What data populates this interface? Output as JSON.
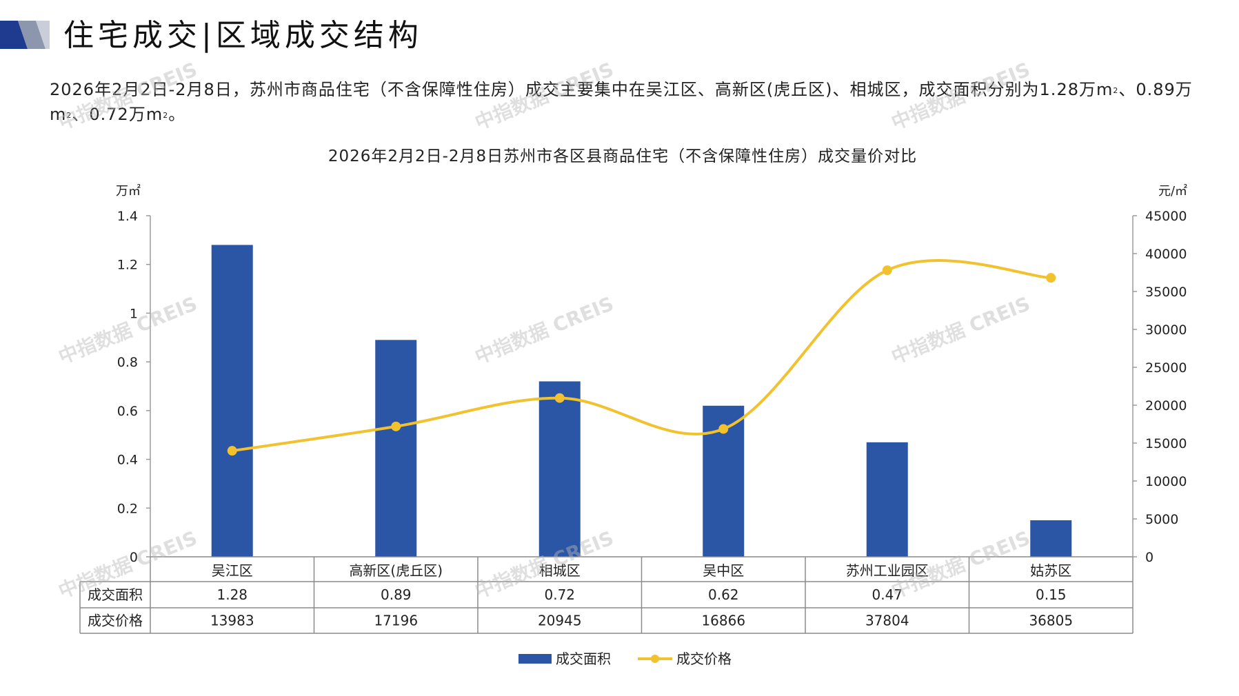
{
  "header": {
    "title": "住宅成交|区域成交结构",
    "brand_colors": {
      "dark": "#1f3b8f",
      "mid": "#8c96ad",
      "light": "#c9ced9"
    }
  },
  "summary": {
    "text1": "2026年2月2日-2月8日，苏州市商品住宅（不含保障性住房）成交主要集中在吴江区、高新区(虎丘区)、相城区，成交面积分别为1.28万",
    "text2": "m",
    "text3": "、0.89万m",
    "text4": "、0.72万m",
    "text5": "。",
    "sup": "2"
  },
  "watermark": {
    "text": "中指数据 CREIS"
  },
  "chart_data": {
    "type": "bar+line",
    "title": "2026年2月2日-2月8日苏州市各区县商品住宅（不含保障性住房）成交量价对比",
    "ylabel_left": "万㎡",
    "ylabel_right": "元/㎡",
    "categories": [
      "吴江区",
      "高新区(虎丘区)",
      "相城区",
      "吴中区",
      "苏州工业园区",
      "姑苏区"
    ],
    "series": [
      {
        "name": "成交面积",
        "type": "bar",
        "axis": "left",
        "color": "#2b55a5",
        "values": [
          1.28,
          0.89,
          0.72,
          0.62,
          0.47,
          0.15
        ],
        "labels": [
          "1.28",
          "0.89",
          "0.72",
          "0.62",
          "0.47",
          "0.15"
        ]
      },
      {
        "name": "成交价格",
        "type": "line",
        "axis": "right",
        "color": "#f2c12e",
        "smooth": true,
        "values": [
          13983,
          17196,
          20945,
          16866,
          37804,
          36805
        ],
        "labels": [
          "13983",
          "17196",
          "20945",
          "16866",
          "37804",
          "36805"
        ]
      }
    ],
    "ylim_left": [
      0,
      1.4
    ],
    "yticks_left": [
      "0",
      "0.2",
      "0.4",
      "0.6",
      "0.8",
      "1",
      "1.2",
      "1.4"
    ],
    "ylim_right": [
      0,
      45000
    ],
    "yticks_right": [
      "0",
      "5000",
      "10000",
      "15000",
      "20000",
      "25000",
      "30000",
      "35000",
      "40000",
      "45000"
    ],
    "data_table": true,
    "legend": "bottom-center",
    "grid": false
  }
}
